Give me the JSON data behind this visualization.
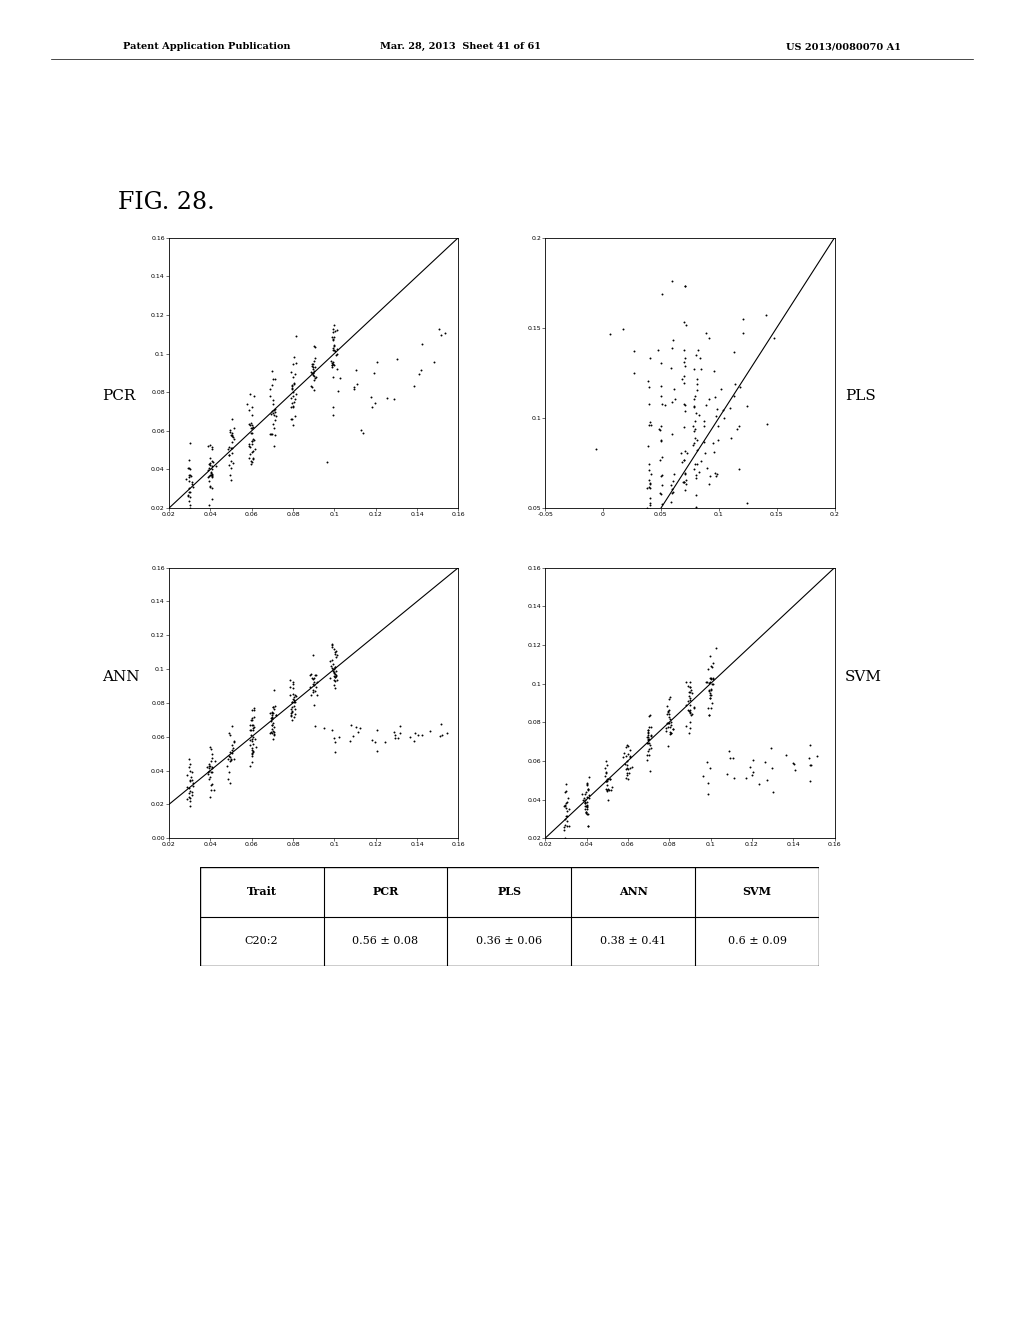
{
  "fig_label": "FIG. 28.",
  "patent_header_left": "Patent Application Publication",
  "patent_header_mid": "Mar. 28, 2013  Sheet 41 of 61",
  "patent_header_right": "US 2013/0080070 A1",
  "panel_labels": [
    "PCR",
    "PLS",
    "ANN",
    "SVM"
  ],
  "pcr": {
    "xlim": [
      0.02,
      0.16
    ],
    "ylim": [
      0.02,
      0.16
    ],
    "xticks": [
      0.02,
      0.04,
      0.06,
      0.08,
      0.1,
      0.12,
      0.14,
      0.16
    ],
    "yticks": [
      0.02,
      0.04,
      0.06,
      0.08,
      0.1,
      0.12,
      0.14,
      0.16
    ],
    "ytick_labels": [
      "0.02",
      "0.04",
      "0.06",
      "0.08",
      "0.1",
      "0.12",
      "0.14",
      "0.16"
    ],
    "xtick_labels": [
      "0.02",
      "0.04",
      "0.06",
      "0.08",
      "0.1",
      "0.12",
      "0.14",
      "0.16"
    ]
  },
  "pls": {
    "xlim": [
      -0.05,
      0.2
    ],
    "ylim": [
      0.05,
      0.2
    ],
    "xticks": [
      -0.05,
      0.0,
      0.05,
      0.1,
      0.15,
      0.2
    ],
    "yticks": [
      0.05,
      0.1,
      0.15,
      0.2
    ],
    "xtick_labels": [
      "-0.05",
      "0",
      "0.05",
      "0.1",
      "0.15",
      "0.2"
    ],
    "ytick_labels": [
      "0.05",
      "0.1",
      "0.15",
      "0.2"
    ]
  },
  "ann": {
    "xlim": [
      0.02,
      0.16
    ],
    "ylim": [
      0.0,
      0.16
    ],
    "xticks": [
      0.02,
      0.04,
      0.06,
      0.08,
      0.1,
      0.12,
      0.14,
      0.16
    ],
    "yticks": [
      0.0,
      0.02,
      0.04,
      0.06,
      0.08,
      0.1,
      0.12,
      0.14,
      0.16
    ],
    "xtick_labels": [
      "0.02",
      "0.04",
      "0.06",
      "0.08",
      "0.1",
      "0.12",
      "0.14",
      "0.16"
    ],
    "ytick_labels": [
      "0.00",
      "0.02",
      "0.04",
      "0.06",
      "0.08",
      "0.1",
      "0.12",
      "0.14",
      "0.16"
    ]
  },
  "svm": {
    "xlim": [
      0.02,
      0.16
    ],
    "ylim": [
      0.02,
      0.16
    ],
    "xticks": [
      0.02,
      0.04,
      0.06,
      0.08,
      0.1,
      0.12,
      0.14,
      0.16
    ],
    "yticks": [
      0.02,
      0.04,
      0.06,
      0.08,
      0.1,
      0.12,
      0.14,
      0.16
    ],
    "xtick_labels": [
      "0.02",
      "0.04",
      "0.06",
      "0.08",
      "0.1",
      "0.12",
      "0.14",
      "0.16"
    ],
    "ytick_labels": [
      "0.02",
      "0.04",
      "0.06",
      "0.08",
      "0.1",
      "0.12",
      "0.14",
      "0.16"
    ]
  },
  "table": {
    "headers": [
      "Trait",
      "PCR",
      "PLS",
      "ANN",
      "SVM"
    ],
    "row": [
      "C20:2",
      "0.56 ± 0.08",
      "0.36 ± 0.06",
      "0.38 ± 0.41",
      "0.6 ± 0.09"
    ]
  },
  "background_color": "#ffffff",
  "plot_bg_color": "#ffffff",
  "text_color": "#000000"
}
